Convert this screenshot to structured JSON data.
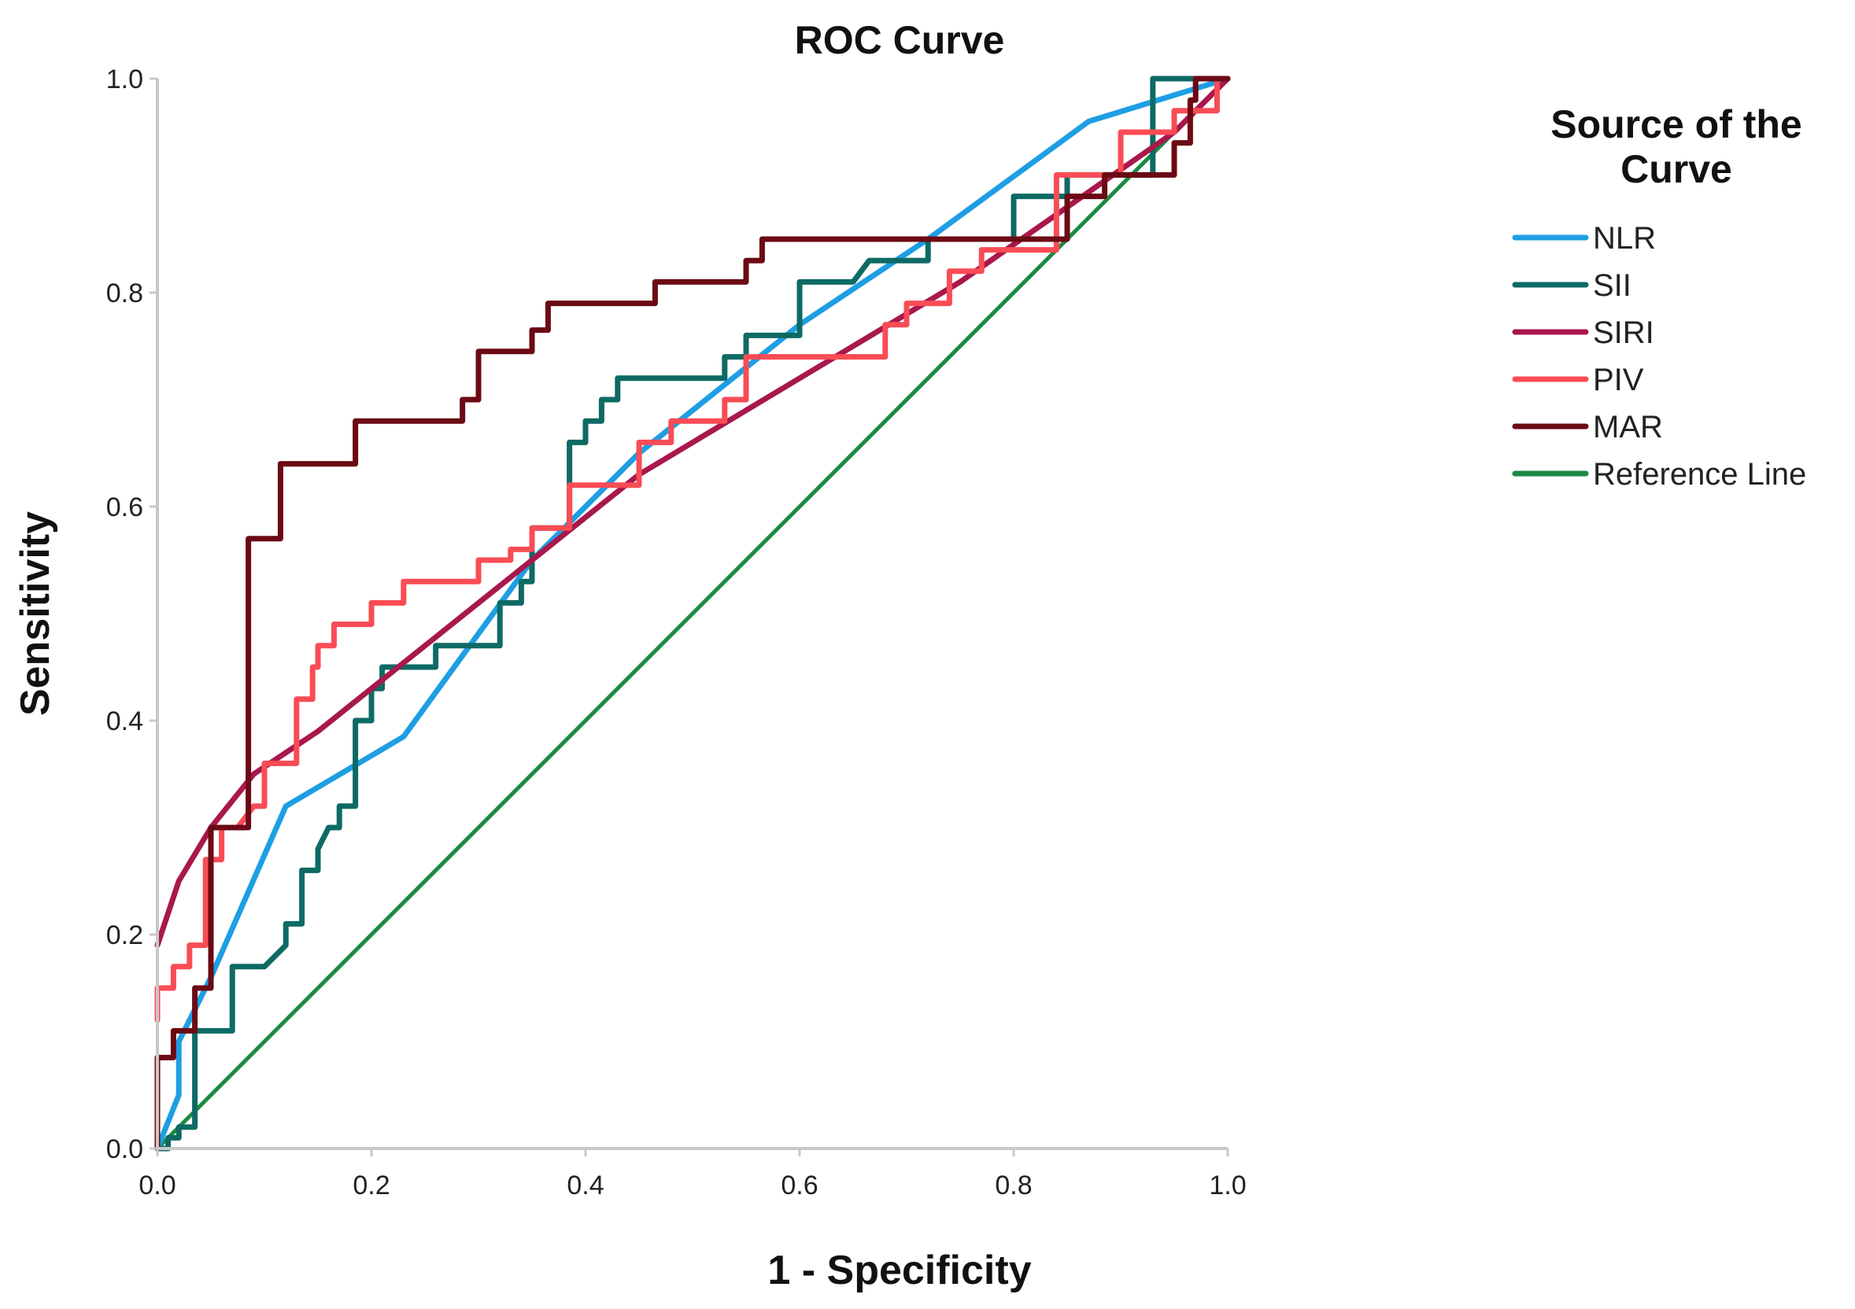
{
  "chart_data": {
    "type": "line",
    "title": "ROC Curve",
    "xlabel": "1 - Specificity",
    "ylabel": "Sensitivity",
    "xlim": [
      0,
      1
    ],
    "ylim": [
      0,
      1
    ],
    "x_ticks": [
      "0.0",
      "0.2",
      "0.4",
      "0.6",
      "0.8",
      "1.0"
    ],
    "y_ticks": [
      "0.0",
      "0.2",
      "0.4",
      "0.6",
      "0.8",
      "1.0"
    ],
    "grid": false,
    "legend": {
      "title_line1": "Source of the",
      "title_line2": "Curve",
      "placement": "right"
    },
    "series": [
      {
        "name": "NLR",
        "color": "#1e9ee3",
        "step": false,
        "points": [
          [
            0,
            0
          ],
          [
            0.02,
            0.05
          ],
          [
            0.02,
            0.1
          ],
          [
            0.05,
            0.16
          ],
          [
            0.12,
            0.32
          ],
          [
            0.23,
            0.385
          ],
          [
            0.35,
            0.55
          ],
          [
            0.45,
            0.65
          ],
          [
            0.5,
            0.69
          ],
          [
            0.6,
            0.77
          ],
          [
            0.72,
            0.85
          ],
          [
            0.87,
            0.96
          ],
          [
            1.0,
            1.0
          ]
        ]
      },
      {
        "name": "SII",
        "color": "#0e6a64",
        "step": true,
        "points": [
          [
            0,
            0
          ],
          [
            0.01,
            0
          ],
          [
            0.01,
            0.01
          ],
          [
            0.02,
            0.01
          ],
          [
            0.02,
            0.02
          ],
          [
            0.035,
            0.02
          ],
          [
            0.035,
            0.11
          ],
          [
            0.07,
            0.11
          ],
          [
            0.07,
            0.17
          ],
          [
            0.1,
            0.17
          ],
          [
            0.12,
            0.19
          ],
          [
            0.12,
            0.21
          ],
          [
            0.135,
            0.21
          ],
          [
            0.135,
            0.23
          ],
          [
            0.135,
            0.26
          ],
          [
            0.15,
            0.26
          ],
          [
            0.15,
            0.28
          ],
          [
            0.16,
            0.3
          ],
          [
            0.17,
            0.3
          ],
          [
            0.17,
            0.32
          ],
          [
            0.185,
            0.32
          ],
          [
            0.185,
            0.4
          ],
          [
            0.2,
            0.4
          ],
          [
            0.2,
            0.43
          ],
          [
            0.21,
            0.43
          ],
          [
            0.21,
            0.45
          ],
          [
            0.26,
            0.45
          ],
          [
            0.26,
            0.47
          ],
          [
            0.32,
            0.47
          ],
          [
            0.32,
            0.51
          ],
          [
            0.34,
            0.51
          ],
          [
            0.34,
            0.53
          ],
          [
            0.35,
            0.53
          ],
          [
            0.35,
            0.58
          ],
          [
            0.385,
            0.58
          ],
          [
            0.385,
            0.66
          ],
          [
            0.4,
            0.66
          ],
          [
            0.4,
            0.68
          ],
          [
            0.415,
            0.68
          ],
          [
            0.415,
            0.7
          ],
          [
            0.43,
            0.7
          ],
          [
            0.43,
            0.72
          ],
          [
            0.53,
            0.72
          ],
          [
            0.53,
            0.74
          ],
          [
            0.55,
            0.74
          ],
          [
            0.55,
            0.76
          ],
          [
            0.6,
            0.76
          ],
          [
            0.6,
            0.81
          ],
          [
            0.65,
            0.81
          ],
          [
            0.665,
            0.83
          ],
          [
            0.72,
            0.83
          ],
          [
            0.72,
            0.85
          ],
          [
            0.8,
            0.85
          ],
          [
            0.8,
            0.89
          ],
          [
            0.85,
            0.89
          ],
          [
            0.85,
            0.91
          ],
          [
            0.93,
            0.91
          ],
          [
            0.93,
            1.0
          ],
          [
            1.0,
            1.0
          ]
        ]
      },
      {
        "name": "SIRI",
        "color": "#a8184d",
        "step": false,
        "points": [
          [
            0,
            0.19
          ],
          [
            0.02,
            0.25
          ],
          [
            0.05,
            0.3
          ],
          [
            0.09,
            0.35
          ],
          [
            0.15,
            0.39
          ],
          [
            0.25,
            0.47
          ],
          [
            0.35,
            0.55
          ],
          [
            0.45,
            0.63
          ],
          [
            0.55,
            0.69
          ],
          [
            0.65,
            0.75
          ],
          [
            0.75,
            0.81
          ],
          [
            0.85,
            0.88
          ],
          [
            0.95,
            0.95
          ],
          [
            1.0,
            1.0
          ]
        ]
      },
      {
        "name": "PIV",
        "color": "#f94c55",
        "step": true,
        "points": [
          [
            0,
            0.12
          ],
          [
            0,
            0.15
          ],
          [
            0.015,
            0.15
          ],
          [
            0.015,
            0.17
          ],
          [
            0.03,
            0.17
          ],
          [
            0.03,
            0.19
          ],
          [
            0.045,
            0.19
          ],
          [
            0.045,
            0.27
          ],
          [
            0.06,
            0.27
          ],
          [
            0.06,
            0.3
          ],
          [
            0.075,
            0.3
          ],
          [
            0.09,
            0.32
          ],
          [
            0.1,
            0.32
          ],
          [
            0.1,
            0.36
          ],
          [
            0.13,
            0.36
          ],
          [
            0.13,
            0.42
          ],
          [
            0.145,
            0.42
          ],
          [
            0.145,
            0.45
          ],
          [
            0.15,
            0.45
          ],
          [
            0.15,
            0.47
          ],
          [
            0.165,
            0.47
          ],
          [
            0.165,
            0.49
          ],
          [
            0.2,
            0.49
          ],
          [
            0.2,
            0.51
          ],
          [
            0.23,
            0.51
          ],
          [
            0.23,
            0.53
          ],
          [
            0.3,
            0.53
          ],
          [
            0.3,
            0.55
          ],
          [
            0.33,
            0.55
          ],
          [
            0.33,
            0.56
          ],
          [
            0.35,
            0.56
          ],
          [
            0.35,
            0.58
          ],
          [
            0.385,
            0.58
          ],
          [
            0.385,
            0.62
          ],
          [
            0.45,
            0.62
          ],
          [
            0.45,
            0.66
          ],
          [
            0.48,
            0.66
          ],
          [
            0.48,
            0.68
          ],
          [
            0.53,
            0.68
          ],
          [
            0.53,
            0.7
          ],
          [
            0.55,
            0.7
          ],
          [
            0.55,
            0.74
          ],
          [
            0.68,
            0.74
          ],
          [
            0.68,
            0.77
          ],
          [
            0.7,
            0.77
          ],
          [
            0.7,
            0.79
          ],
          [
            0.74,
            0.79
          ],
          [
            0.74,
            0.82
          ],
          [
            0.77,
            0.82
          ],
          [
            0.77,
            0.84
          ],
          [
            0.84,
            0.84
          ],
          [
            0.84,
            0.91
          ],
          [
            0.9,
            0.91
          ],
          [
            0.9,
            0.95
          ],
          [
            0.95,
            0.95
          ],
          [
            0.95,
            0.97
          ],
          [
            0.99,
            0.97
          ],
          [
            0.99,
            1.0
          ],
          [
            1.0,
            1.0
          ]
        ]
      },
      {
        "name": "MAR",
        "color": "#6b0a14",
        "step": true,
        "points": [
          [
            0,
            0
          ],
          [
            0,
            0.085
          ],
          [
            0.015,
            0.085
          ],
          [
            0.015,
            0.11
          ],
          [
            0.035,
            0.11
          ],
          [
            0.035,
            0.15
          ],
          [
            0.05,
            0.15
          ],
          [
            0.05,
            0.3
          ],
          [
            0.085,
            0.3
          ],
          [
            0.085,
            0.57
          ],
          [
            0.115,
            0.57
          ],
          [
            0.115,
            0.64
          ],
          [
            0.185,
            0.64
          ],
          [
            0.185,
            0.68
          ],
          [
            0.285,
            0.68
          ],
          [
            0.285,
            0.7
          ],
          [
            0.3,
            0.7
          ],
          [
            0.3,
            0.745
          ],
          [
            0.35,
            0.745
          ],
          [
            0.35,
            0.765
          ],
          [
            0.365,
            0.765
          ],
          [
            0.365,
            0.79
          ],
          [
            0.465,
            0.79
          ],
          [
            0.465,
            0.81
          ],
          [
            0.55,
            0.81
          ],
          [
            0.55,
            0.83
          ],
          [
            0.565,
            0.83
          ],
          [
            0.565,
            0.85
          ],
          [
            0.85,
            0.85
          ],
          [
            0.85,
            0.89
          ],
          [
            0.885,
            0.89
          ],
          [
            0.885,
            0.91
          ],
          [
            0.95,
            0.91
          ],
          [
            0.95,
            0.94
          ],
          [
            0.965,
            0.94
          ],
          [
            0.965,
            0.98
          ],
          [
            0.97,
            0.98
          ],
          [
            0.97,
            1.0
          ],
          [
            1.0,
            1.0
          ]
        ]
      },
      {
        "name": "Reference Line",
        "color": "#1a8a44",
        "step": false,
        "points": [
          [
            0,
            0
          ],
          [
            1,
            1
          ]
        ]
      }
    ]
  }
}
